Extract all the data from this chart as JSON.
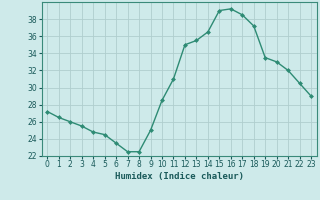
{
  "x": [
    0,
    1,
    2,
    3,
    4,
    5,
    6,
    7,
    8,
    9,
    10,
    11,
    12,
    13,
    14,
    15,
    16,
    17,
    18,
    19,
    20,
    21,
    22,
    23
  ],
  "y": [
    27.2,
    26.5,
    26.0,
    25.5,
    24.8,
    24.5,
    23.5,
    22.5,
    22.5,
    25.0,
    28.5,
    31.0,
    35.0,
    35.5,
    36.5,
    39.0,
    39.2,
    38.5,
    37.2,
    33.5,
    33.0,
    32.0,
    30.5,
    29.0
  ],
  "line_color": "#2e8b74",
  "marker": "D",
  "marker_size": 2.5,
  "bg_color": "#ceeaea",
  "grid_color": "#b0cece",
  "xlabel": "Humidex (Indice chaleur)",
  "ylim": [
    22,
    40
  ],
  "xlim": [
    -0.5,
    23.5
  ],
  "yticks": [
    22,
    24,
    26,
    28,
    30,
    32,
    34,
    36,
    38
  ],
  "xticks": [
    0,
    1,
    2,
    3,
    4,
    5,
    6,
    7,
    8,
    9,
    10,
    11,
    12,
    13,
    14,
    15,
    16,
    17,
    18,
    19,
    20,
    21,
    22,
    23
  ],
  "label_fontsize": 6.5,
  "tick_fontsize": 5.5,
  "spine_color": "#3a8a7a"
}
